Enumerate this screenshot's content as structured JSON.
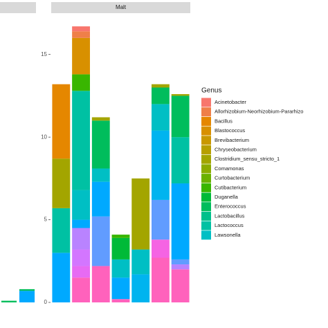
{
  "chart_data": [
    {
      "type": "stacked-bar",
      "categories": [
        null,
        null
      ],
      "ylim": [
        0,
        17.5
      ],
      "series": [
        {
          "name": "Enterococcus",
          "color": "#00bd5c",
          "values": [
            0.1,
            0.1
          ]
        },
        {
          "name": null,
          "color": "#00a9ff",
          "values": [
            0,
            0.7
          ]
        }
      ]
    },
    {
      "type": "stacked-bar",
      "title": "Malt",
      "legend_title": "Genus",
      "categories": [
        null,
        null,
        null,
        null,
        null,
        null,
        null
      ],
      "ylim": [
        0,
        17.5
      ],
      "yticks": [
        0,
        5,
        10,
        15
      ],
      "series": [
        {
          "name": "Acinetobacter",
          "color": "#f8766d",
          "values": [
            0,
            0.3,
            0,
            0,
            0,
            0,
            0
          ]
        },
        {
          "name": "Allorhizobium-Neorhizobium-Pararhizo",
          "color": "#ef7f49",
          "values": [
            0,
            0.4,
            0,
            0,
            0,
            0,
            0
          ]
        },
        {
          "name": "Bacillus",
          "color": "#e58700",
          "values": [
            4.5,
            0,
            0,
            0,
            0,
            0,
            0
          ]
        },
        {
          "name": "Blastococcus",
          "color": "#d89000",
          "values": [
            0,
            2.2,
            0,
            0,
            0,
            0,
            0
          ]
        },
        {
          "name": "Brevibacterium",
          "color": "#c99800",
          "values": [
            0,
            0,
            0,
            0,
            0,
            0,
            0
          ]
        },
        {
          "name": "Chryseobacterium",
          "color": "#b79f00",
          "values": [
            0,
            0,
            0,
            0,
            0,
            0,
            0
          ]
        },
        {
          "name": "Clostridium_sensu_stricto_1",
          "color": "#a3a500",
          "values": [
            3.0,
            0,
            0.2,
            0,
            4.3,
            0.2,
            0.1
          ]
        },
        {
          "name": "Comamonas",
          "color": "#8cab00",
          "values": [
            0,
            0,
            0,
            0,
            0,
            0,
            0
          ]
        },
        {
          "name": "Curtobacterium",
          "color": "#6bb100",
          "values": [
            0,
            0,
            0,
            0,
            0,
            0,
            0
          ]
        },
        {
          "name": "Cutibacterium",
          "color": "#39b600",
          "values": [
            0,
            1.0,
            0,
            0.2,
            0,
            0,
            0
          ]
        },
        {
          "name": "Duganella",
          "color": "#00ba38",
          "values": [
            0,
            0,
            0,
            1.3,
            0,
            0,
            0
          ]
        },
        {
          "name": "Enterococcus",
          "color": "#00bd5c",
          "values": [
            0,
            0,
            2.9,
            0,
            0,
            1.0,
            2.5
          ]
        },
        {
          "name": "Lactobacillus",
          "color": "#00c08b",
          "values": [
            0,
            0,
            0,
            0,
            0,
            0,
            0
          ]
        },
        {
          "name": "Lactococcus",
          "color": "#00c1a3",
          "values": [
            2.7,
            6.0,
            0,
            0,
            0,
            0,
            2.8
          ]
        },
        {
          "name": "Lawsonella",
          "color": "#00bfc4",
          "values": [
            0,
            1.8,
            0.8,
            1.1,
            1.5,
            1.6,
            0
          ]
        },
        {
          "name": null,
          "color": "#00b4ef",
          "values": [
            0,
            0,
            0,
            0,
            1.7,
            4.2,
            0
          ]
        },
        {
          "name": null,
          "color": "#00a9ff",
          "values": [
            3.0,
            0.5,
            2.1,
            1.3,
            0,
            0,
            4.6
          ]
        },
        {
          "name": null,
          "color": "#619cff",
          "values": [
            0,
            0,
            3.0,
            0,
            0,
            2.4,
            0.3
          ]
        },
        {
          "name": null,
          "color": "#b983ff",
          "values": [
            0,
            1.3,
            0,
            0,
            0,
            0,
            0.3
          ]
        },
        {
          "name": null,
          "color": "#d376ff",
          "values": [
            0,
            1.0,
            0,
            0,
            0,
            0,
            0
          ]
        },
        {
          "name": null,
          "color": "#e76bf3",
          "values": [
            0,
            0.7,
            0,
            0,
            0,
            0,
            0
          ]
        },
        {
          "name": null,
          "color": "#f564e3",
          "values": [
            0,
            0,
            0,
            0,
            0,
            1.1,
            0
          ]
        },
        {
          "name": null,
          "color": "#ff62bc",
          "values": [
            0,
            1.5,
            2.2,
            0.2,
            0,
            2.7,
            2.0
          ]
        }
      ]
    }
  ]
}
